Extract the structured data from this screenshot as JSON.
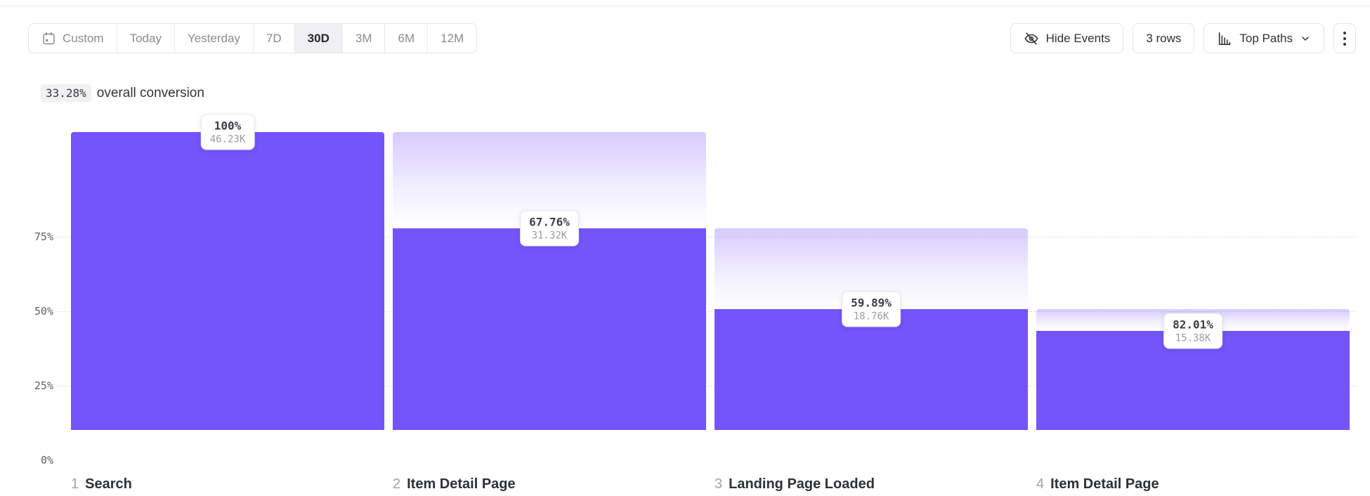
{
  "toolbar": {
    "date_ranges": [
      {
        "label": "Custom",
        "selected": false,
        "icon": "calendar-icon"
      },
      {
        "label": "Today",
        "selected": false
      },
      {
        "label": "Yesterday",
        "selected": false
      },
      {
        "label": "7D",
        "selected": false
      },
      {
        "label": "30D",
        "selected": true
      },
      {
        "label": "3M",
        "selected": false
      },
      {
        "label": "6M",
        "selected": false
      },
      {
        "label": "12M",
        "selected": false
      }
    ],
    "hide_events_label": "Hide Events",
    "rows_label": "3 rows",
    "top_paths_label": "Top Paths"
  },
  "summary": {
    "conversion_value": "33.28%",
    "conversion_text": "overall conversion"
  },
  "chart_data": {
    "type": "bar",
    "subtype": "funnel",
    "title": "33.28% overall conversion",
    "categories": [
      "Search",
      "Item Detail Page",
      "Landing Page Loaded",
      "Item Detail Page"
    ],
    "steps": [
      {
        "index": "1",
        "name": "Search",
        "conversion_pct": "100%",
        "count": "46.23K",
        "count_value": 46230,
        "cumulative_pct": 100,
        "prev_cumulative_pct": 100
      },
      {
        "index": "2",
        "name": "Item Detail Page",
        "conversion_pct": "67.76%",
        "count": "31.32K",
        "count_value": 31320,
        "cumulative_pct": 67.75,
        "prev_cumulative_pct": 100
      },
      {
        "index": "3",
        "name": "Landing Page Loaded",
        "conversion_pct": "59.89%",
        "count": "18.76K",
        "count_value": 18760,
        "cumulative_pct": 40.58,
        "prev_cumulative_pct": 67.75
      },
      {
        "index": "4",
        "name": "Item Detail Page",
        "conversion_pct": "82.01%",
        "count": "15.38K",
        "count_value": 15380,
        "cumulative_pct": 33.27,
        "prev_cumulative_pct": 40.58
      }
    ],
    "y_ticks": [
      {
        "label": "75%",
        "value": 75,
        "gridline": true
      },
      {
        "label": "50%",
        "value": 50,
        "gridline": true
      },
      {
        "label": "25%",
        "value": 25,
        "gridline": true
      },
      {
        "label": "0%",
        "value": 0,
        "gridline": false
      }
    ],
    "ylim": [
      0,
      100
    ],
    "grid": "dashed-horizontal",
    "legend": "none",
    "colors": {
      "bar": "#7454fb",
      "gradient_top": "#d8d1fa",
      "gridline": "#e3e3e7"
    }
  }
}
